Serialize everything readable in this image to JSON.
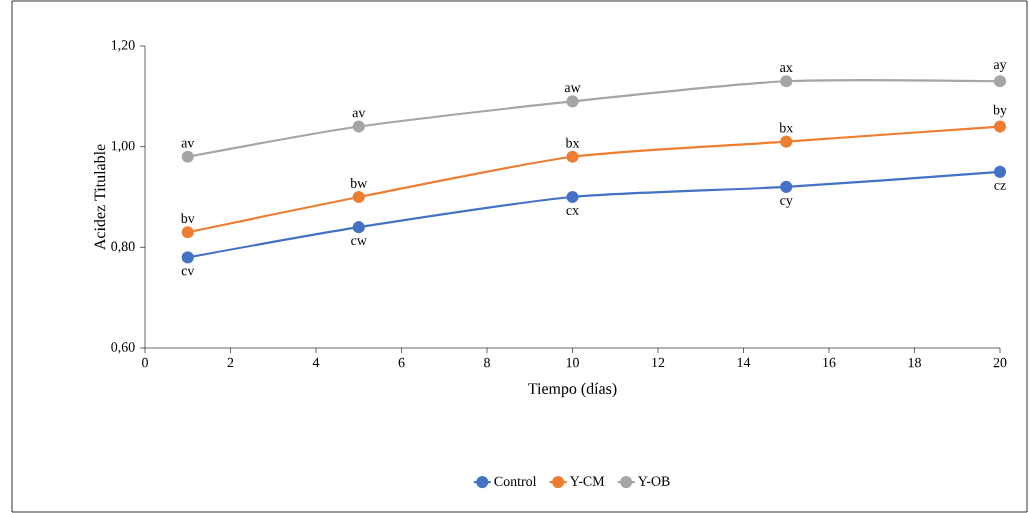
{
  "chart_data": {
    "type": "line",
    "xlabel": "Tiempo (días)",
    "ylabel": "Acidez Titulable",
    "x": [
      1,
      5,
      10,
      15,
      20
    ],
    "series": [
      {
        "name": "Control",
        "color": "#4472c4",
        "values": [
          0.78,
          0.84,
          0.9,
          0.92,
          0.95
        ]
      },
      {
        "name": "Y-CM",
        "color": "#ed7d31",
        "values": [
          0.83,
          0.9,
          0.98,
          1.01,
          1.04
        ]
      },
      {
        "name": "Y-OB",
        "color": "#a5a5a5",
        "values": [
          0.98,
          1.04,
          1.09,
          1.13,
          1.13
        ]
      }
    ],
    "xlim": [
      0,
      20
    ],
    "xticks": [
      0,
      2,
      4,
      6,
      8,
      10,
      12,
      14,
      16,
      18,
      20
    ],
    "ylim": [
      0.6,
      1.2
    ],
    "yticks": [
      {
        "value": 0.6,
        "label": "0,60"
      },
      {
        "value": 0.8,
        "label": "0,80"
      },
      {
        "value": 1.0,
        "label": "1,00"
      },
      {
        "value": 1.2,
        "label": "1,20"
      }
    ],
    "grid": false,
    "legend": "bottom",
    "marker": "circle",
    "line_style": "solid",
    "annotations": [
      {
        "text": "cv",
        "x": 1,
        "y": 0.78
      },
      {
        "text": "cw",
        "x": 5,
        "y": 0.84
      },
      {
        "text": "cx",
        "x": 10,
        "y": 0.9
      },
      {
        "text": "cy",
        "x": 15,
        "y": 0.92
      },
      {
        "text": "cz",
        "x": 20,
        "y": 0.95
      },
      {
        "text": "bv",
        "x": 1,
        "y": 0.83
      },
      {
        "text": "bw",
        "x": 5,
        "y": 0.9
      },
      {
        "text": "bx",
        "x": 10,
        "y": 0.98
      },
      {
        "text": "bx",
        "x": 15,
        "y": 1.01
      },
      {
        "text": "by",
        "x": 20,
        "y": 1.04
      },
      {
        "text": "av",
        "x": 1,
        "y": 0.98
      },
      {
        "text": "av",
        "x": 5,
        "y": 1.04
      },
      {
        "text": "aw",
        "x": 10,
        "y": 1.09
      },
      {
        "text": "ax",
        "x": 15,
        "y": 1.13
      },
      {
        "text": "ay",
        "x": 20,
        "y": 1.13
      }
    ]
  }
}
